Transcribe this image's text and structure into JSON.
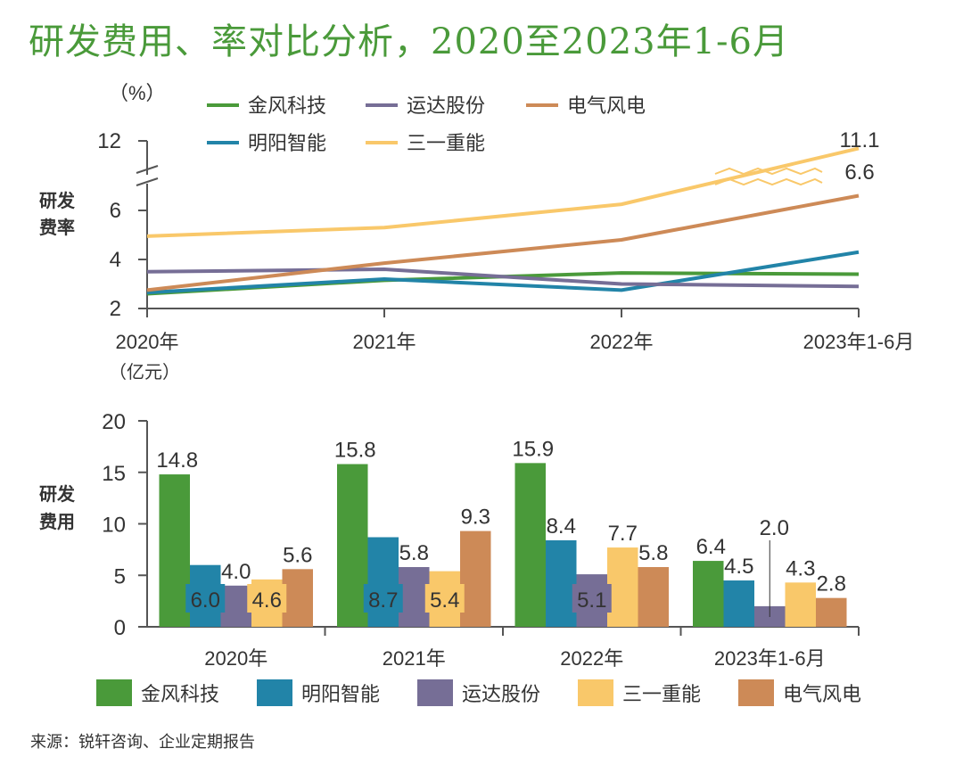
{
  "title": "研发费用、率对比分析，2020至2023年1-6月",
  "source": "来源：锐轩咨询、企业定期报告",
  "colors": {
    "金风科技": "#4a9a3a",
    "明阳智能": "#2284a8",
    "运达股份": "#766e96",
    "三一重能": "#f9c86a",
    "电气风电": "#cd8a57",
    "axis": "#555555",
    "text": "#333333"
  },
  "chart_data": [
    {
      "type": "line",
      "title": "",
      "unit_label": "（%）",
      "ylabel": "研发费率",
      "ylabel_lines": [
        "研发",
        "费率"
      ],
      "x": [
        "2020年",
        "2021年",
        "2022年",
        "2023年1-6月"
      ],
      "yticks": [
        "2",
        "4",
        "6",
        "12"
      ],
      "ylim": [
        2,
        12
      ],
      "axis_break": [
        7.2,
        10.5
      ],
      "legend_position": "top",
      "legend": [
        "金风科技",
        "运达股份",
        "电气风电",
        "明阳智能",
        "三一重能"
      ],
      "series": [
        {
          "name": "金风科技",
          "values": [
            2.6,
            3.15,
            3.45,
            3.4
          ]
        },
        {
          "name": "明阳智能",
          "values": [
            2.65,
            3.2,
            2.75,
            4.3
          ]
        },
        {
          "name": "运达股份",
          "values": [
            3.5,
            3.6,
            3.0,
            2.9
          ]
        },
        {
          "name": "三一重能",
          "values": [
            4.95,
            5.3,
            6.25,
            11.1
          ]
        },
        {
          "name": "电气风电",
          "values": [
            2.75,
            3.85,
            4.8,
            6.6
          ]
        }
      ],
      "data_labels": [
        {
          "series": "三一重能",
          "x": "2023年1-6月",
          "text": "11.1"
        },
        {
          "series": "电气风电",
          "x": "2023年1-6月",
          "text": "6.6"
        }
      ]
    },
    {
      "type": "bar",
      "title": "",
      "unit_label": "（亿元）",
      "ylabel": "研发费用",
      "ylabel_lines": [
        "研发",
        "费用"
      ],
      "categories": [
        "2020年",
        "2021年",
        "2022年",
        "2023年1-6月"
      ],
      "yticks": [
        "0",
        "5",
        "10",
        "15",
        "20"
      ],
      "ylim": [
        0,
        20
      ],
      "legend_position": "bottom",
      "series": [
        {
          "name": "金风科技",
          "values": [
            14.8,
            15.8,
            15.9,
            6.4
          ],
          "labels": [
            "14.8",
            "15.8",
            "15.9",
            "6.4"
          ]
        },
        {
          "name": "明阳智能",
          "values": [
            6.0,
            8.7,
            8.4,
            4.5
          ],
          "labels": [
            "6.0",
            "8.7",
            "8.4",
            "4.5"
          ]
        },
        {
          "name": "运达股份",
          "values": [
            4.0,
            5.8,
            5.1,
            2.0
          ],
          "labels": [
            "4.0",
            "5.8",
            "5.1",
            "2.0"
          ]
        },
        {
          "name": "三一重能",
          "values": [
            4.6,
            5.4,
            7.7,
            4.3
          ],
          "labels": [
            "4.6",
            "5.4",
            "7.7",
            "4.3"
          ]
        },
        {
          "name": "电气风电",
          "values": [
            5.6,
            9.3,
            5.8,
            2.8
          ],
          "labels": [
            "5.6",
            "9.3",
            "5.8",
            "2.8"
          ]
        }
      ]
    }
  ]
}
